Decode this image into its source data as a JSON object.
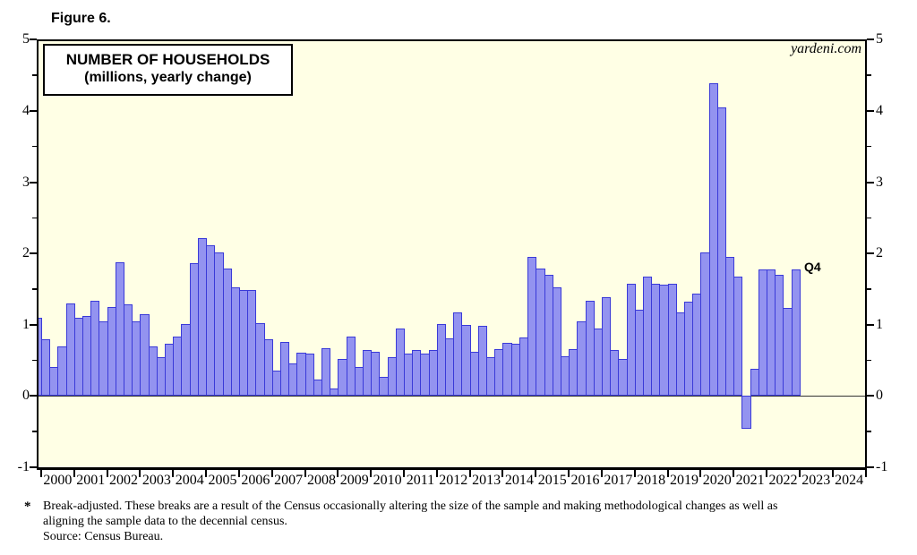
{
  "figure_label": "Figure 6.",
  "chart_data": {
    "type": "bar",
    "title": "NUMBER OF HOUSEHOLDS",
    "subtitle": "(millions, yearly change)",
    "watermark": "yardeni.com",
    "last_bar_annotation": "Q4",
    "ylim": [
      -1,
      5
    ],
    "y_major_ticks": [
      "5",
      "4",
      "3",
      "2",
      "1",
      "0",
      "-1"
    ],
    "y_minor_step": 0.5,
    "x_year_labels": [
      "2000",
      "2001",
      "2002",
      "2003",
      "2004",
      "2005",
      "2006",
      "2007",
      "2008",
      "2009",
      "2010",
      "2011",
      "2012",
      "2013",
      "2014",
      "2015",
      "2016",
      "2017",
      "2018",
      "2019",
      "2020",
      "2021",
      "2022",
      "2023",
      "2024"
    ],
    "frequency": "quarterly",
    "leading_partial_value": 1.1,
    "series": [
      {
        "name": "Number of households, yearly change (millions)",
        "start": "2000-Q1",
        "end": "2022-Q4",
        "values": [
          0.8,
          0.4,
          0.7,
          1.3,
          1.1,
          1.12,
          1.33,
          1.05,
          1.25,
          1.87,
          1.28,
          1.05,
          1.15,
          0.7,
          0.55,
          0.73,
          0.83,
          1.01,
          1.86,
          2.21,
          2.11,
          2.02,
          1.79,
          1.53,
          1.49,
          1.48,
          1.02,
          0.79,
          0.35,
          0.76,
          0.46,
          0.61,
          0.6,
          0.23,
          0.67,
          0.1,
          0.52,
          0.83,
          0.41,
          0.64,
          0.62,
          0.27,
          0.54,
          0.94,
          0.59,
          0.65,
          0.59,
          0.64,
          1.01,
          0.81,
          1.17,
          1.0,
          0.62,
          0.98,
          0.55,
          0.66,
          0.75,
          0.73,
          0.82,
          1.95,
          1.79,
          1.7,
          1.53,
          0.56,
          0.66,
          1.05,
          1.33,
          0.94,
          1.39,
          0.65,
          0.52,
          1.58,
          1.21,
          1.68,
          1.58,
          1.56,
          1.58,
          1.17,
          1.32,
          1.43,
          2.02,
          4.39,
          4.05,
          1.95,
          1.68,
          -0.46,
          0.38,
          1.78,
          1.77,
          1.7,
          1.23,
          1.78
        ]
      }
    ],
    "colors": {
      "bar_fill": "#9393F0",
      "bar_border": "#3A3AD8",
      "plot_bg": "#FFFFE5",
      "axis": "#000000",
      "zero_line": "#333333"
    },
    "grid": "off",
    "legend": "none"
  },
  "footnote": {
    "marker": "*",
    "lines": [
      "Break-adjusted. These breaks are a result of the Census occasionally altering the size of the sample and making methodological changes as well as",
      "aligning the sample data to the decennial census.",
      "Source: Census Bureau."
    ]
  }
}
